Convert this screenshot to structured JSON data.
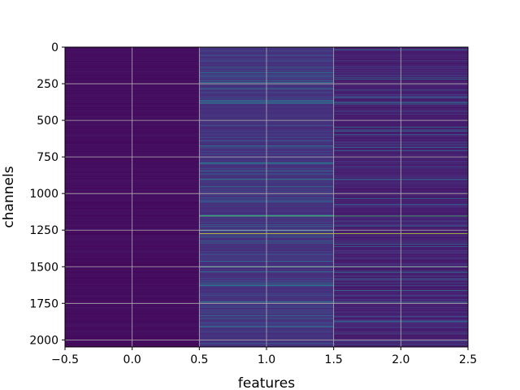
{
  "chart_data": {
    "type": "heatmap",
    "title": "",
    "xlabel": "features",
    "ylabel": "channels",
    "x_columns": [
      0,
      1,
      2
    ],
    "xlim": [
      -0.5,
      2.5
    ],
    "ylim": [
      2048,
      0
    ],
    "y_inverted": true,
    "xticks": [
      -0.5,
      0.0,
      0.5,
      1.0,
      1.5,
      2.0,
      2.5
    ],
    "xtick_labels": [
      "−0.5",
      "0.0",
      "0.5",
      "1.0",
      "1.5",
      "2.0",
      "2.5"
    ],
    "yticks": [
      0,
      250,
      500,
      750,
      1000,
      1250,
      1500,
      1750,
      2000
    ],
    "ytick_labels": [
      "0",
      "250",
      "500",
      "750",
      "1000",
      "1250",
      "1500",
      "1750",
      "2000"
    ],
    "grid": true,
    "colormap": "viridis",
    "value_range": [
      0,
      1
    ],
    "column_base_levels": [
      0.02,
      0.12,
      0.06
    ],
    "notable_rows": [
      {
        "channel": 380,
        "values": [
          0.02,
          0.55,
          0.45
        ]
      },
      {
        "channel": 900,
        "values": [
          0.02,
          0.5,
          0.35
        ]
      },
      {
        "channel": 1150,
        "values": [
          0.02,
          0.75,
          0.7
        ]
      },
      {
        "channel": 1270,
        "values": [
          0.02,
          0.95,
          0.9
        ]
      },
      {
        "channel": 1500,
        "values": [
          0.02,
          0.6,
          0.55
        ]
      },
      {
        "channel": 1740,
        "values": [
          0.02,
          0.5,
          0.45
        ]
      }
    ]
  }
}
